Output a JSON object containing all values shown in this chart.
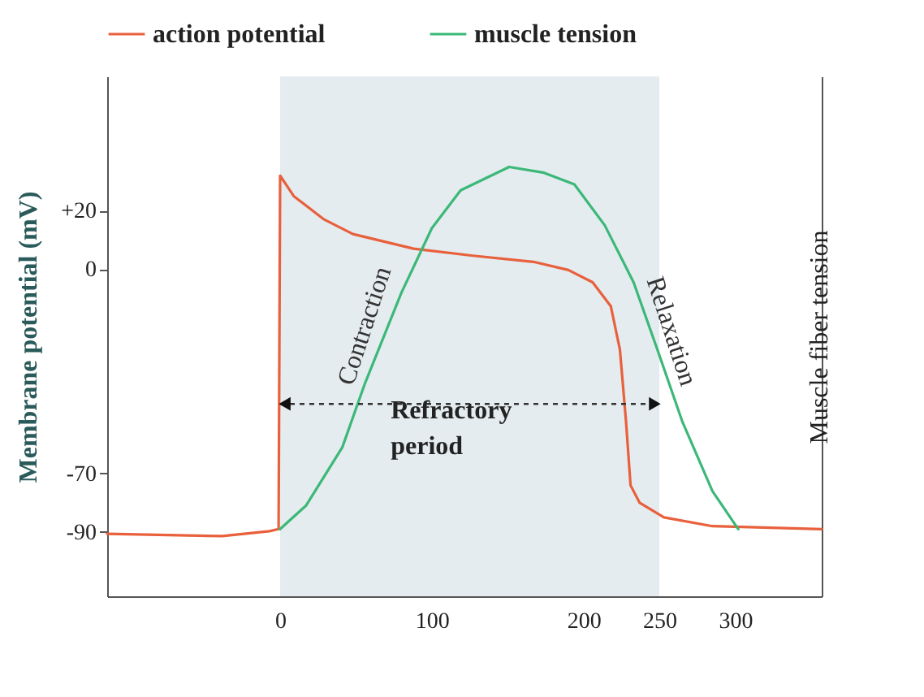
{
  "chart_data": {
    "type": "line",
    "ylabel": "Membrane potential (mV)",
    "y2label": "Muscle fiber tension",
    "xlim": [
      -114,
      357
    ],
    "xticks": [
      0,
      100,
      200,
      250,
      300
    ],
    "ylim": [
      -112,
      66
    ],
    "yticks": [
      {
        "value": 20,
        "label": "+20"
      },
      0,
      -70,
      -90
    ],
    "legend": "top",
    "grid": false,
    "line_style": "solid",
    "marker": "none",
    "series": [
      {
        "name": "action potential",
        "color": "#e8603c",
        "x": [
          -114,
          -38,
          -7,
          -1,
          0,
          9,
          29,
          48,
          88,
          127,
          167,
          190,
          206,
          218,
          224,
          228,
          231,
          237,
          253,
          285,
          357
        ],
        "values": [
          -90.6,
          -91.4,
          -89.7,
          -89,
          32,
          25,
          17,
          12,
          7,
          4.6,
          2.5,
          -0.3,
          -4.5,
          -12.7,
          -27.6,
          -52,
          -74,
          -80,
          -85,
          -88,
          -89
        ]
      },
      {
        "name": "muscle tension",
        "color": "#3cb878",
        "x": [
          0,
          17,
          41,
          56,
          80,
          100,
          119,
          151,
          174,
          194,
          214,
          233,
          249,
          265,
          285,
          302
        ],
        "values": [
          -89,
          -81,
          -61,
          -39,
          -8,
          14,
          27,
          35,
          33,
          29,
          15,
          -4.5,
          -28,
          -52,
          -76,
          -89
        ]
      }
    ],
    "bands": [
      {
        "axis": "x",
        "from": 0,
        "to": 250,
        "label": "Refractory period",
        "color": "#e4ecef"
      }
    ],
    "annotations": [
      "Contraction",
      "Relaxation"
    ]
  }
}
